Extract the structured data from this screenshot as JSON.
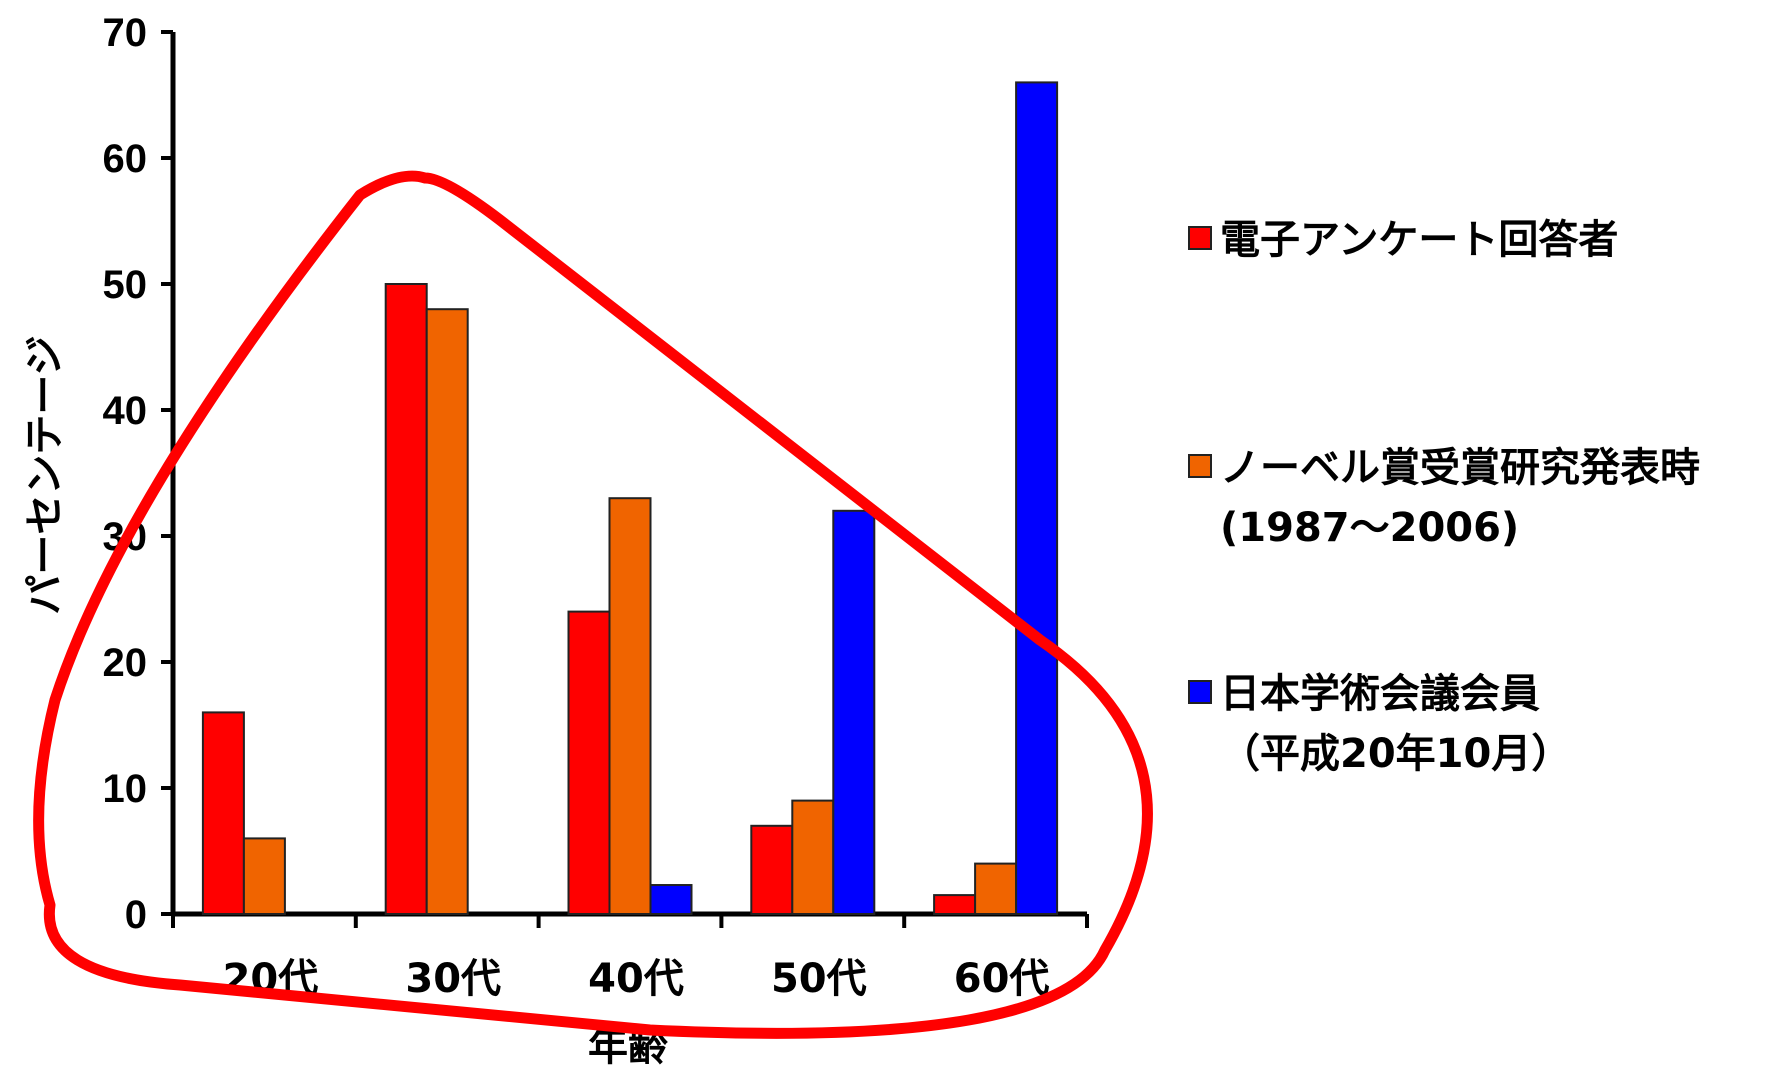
{
  "chart_data": {
    "type": "bar",
    "categories": [
      "20代",
      "30代",
      "40代",
      "50代",
      "60代"
    ],
    "series": [
      {
        "name": "電子アンケート回答者",
        "color": "#ff0000",
        "values": [
          16,
          50,
          24,
          7,
          1.5
        ]
      },
      {
        "name": "ノーベル賞受賞研究発表時",
        "name_line2": "(1987～2006)",
        "color": "#f06400",
        "values": [
          6,
          48,
          33,
          9,
          4
        ]
      },
      {
        "name": "日本学術会議会員",
        "name_line2": "（平成20年10月）",
        "color": "#0000ff",
        "values": [
          null,
          null,
          2.3,
          32,
          66
        ]
      }
    ],
    "y_ticks": [
      "0",
      "10",
      "20",
      "30",
      "40",
      "50",
      "60",
      "70"
    ],
    "ylim": [
      0,
      70
    ],
    "xlabel": "年齢",
    "ylabel": "パーセンテージ",
    "legend_position": "right",
    "annotation": {
      "shape": "rounded-triangle",
      "color": "#ff0000"
    }
  }
}
